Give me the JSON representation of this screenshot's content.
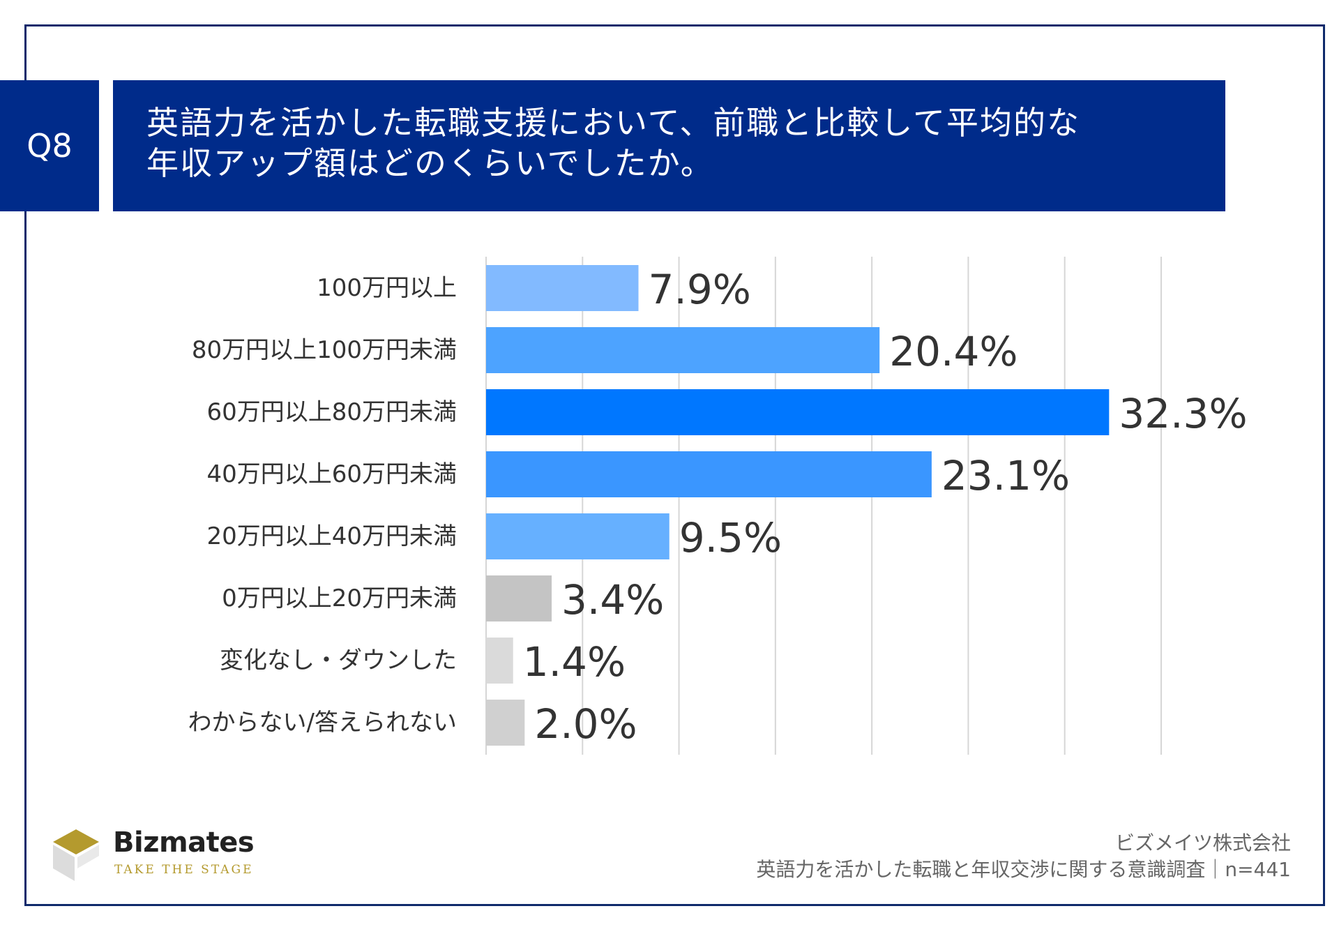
{
  "question": {
    "number": "Q8",
    "line1": "英語力を活かした転職支援において、前職と比較して平均的な",
    "line2": "年収アップ額はどのくらいでしたか。"
  },
  "chart_data": {
    "type": "bar",
    "orientation": "horizontal",
    "categories": [
      "100万円以上",
      "80万円以上100万円未満",
      "60万円以上80万円未満",
      "40万円以上60万円未満",
      "20万円以上40万円未満",
      "0万円以上20万円未満",
      "変化なし・ダウンした",
      "わからない/答えられない"
    ],
    "values": [
      7.9,
      20.4,
      32.3,
      23.1,
      9.5,
      3.4,
      1.4,
      2.0
    ],
    "value_labels": [
      "7.9%",
      "20.4%",
      "32.3%",
      "23.1%",
      "9.5%",
      "3.4%",
      "1.4%",
      "2.0%"
    ],
    "bar_colors": [
      "#82baff",
      "#4da3ff",
      "#0077ff",
      "#3a96ff",
      "#66b0ff",
      "#c4c4c4",
      "#dadada",
      "#d0d0d0"
    ],
    "xlim": [
      0,
      35
    ],
    "grid": true
  },
  "logo": {
    "name": "Bizmates",
    "tagline": "TAKE THE STAGE",
    "colors": {
      "gold": "#b49a2e",
      "gray": "#cfcfcf"
    }
  },
  "source": {
    "company": "ビズメイツ株式会社",
    "survey": "英語力を活かした転職と年収交渉に関する意識調査｜n=441"
  },
  "colors": {
    "header_bg": "#002b8a",
    "frame": "#0f2a6b",
    "grid": "#d6d6d6"
  }
}
